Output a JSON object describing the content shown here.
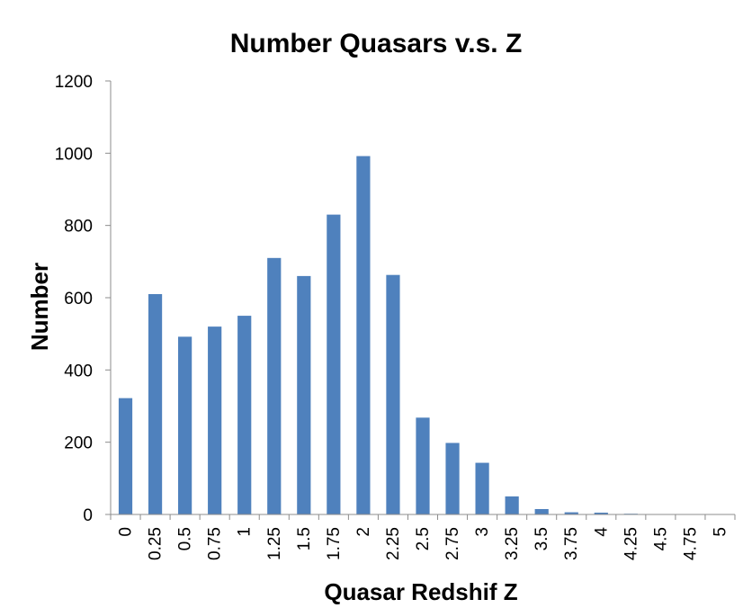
{
  "chart_data": {
    "type": "bar",
    "title": "Number Quasars v.s. Z",
    "xlabel": "Quasar Redshif Z",
    "ylabel": "Number",
    "categories": [
      "0",
      "0.25",
      "0.5",
      "0.75",
      "1",
      "1.25",
      "1.5",
      "1.75",
      "2",
      "2.25",
      "2.5",
      "2.75",
      "3",
      "3.25",
      "3.5",
      "3.75",
      "4",
      "4.25",
      "4.5",
      "4.75",
      "5"
    ],
    "values": [
      322,
      610,
      492,
      520,
      550,
      710,
      660,
      830,
      992,
      663,
      268,
      198,
      143,
      50,
      15,
      6,
      5,
      2,
      0,
      0,
      0
    ],
    "ylim": [
      0,
      1200
    ],
    "yticks": [
      "0",
      "200",
      "400",
      "600",
      "800",
      "1000",
      "1200"
    ],
    "grid": false,
    "legend": "none",
    "colors": {
      "bar": "#4f81bd",
      "axis": "#8c8c8c"
    }
  }
}
